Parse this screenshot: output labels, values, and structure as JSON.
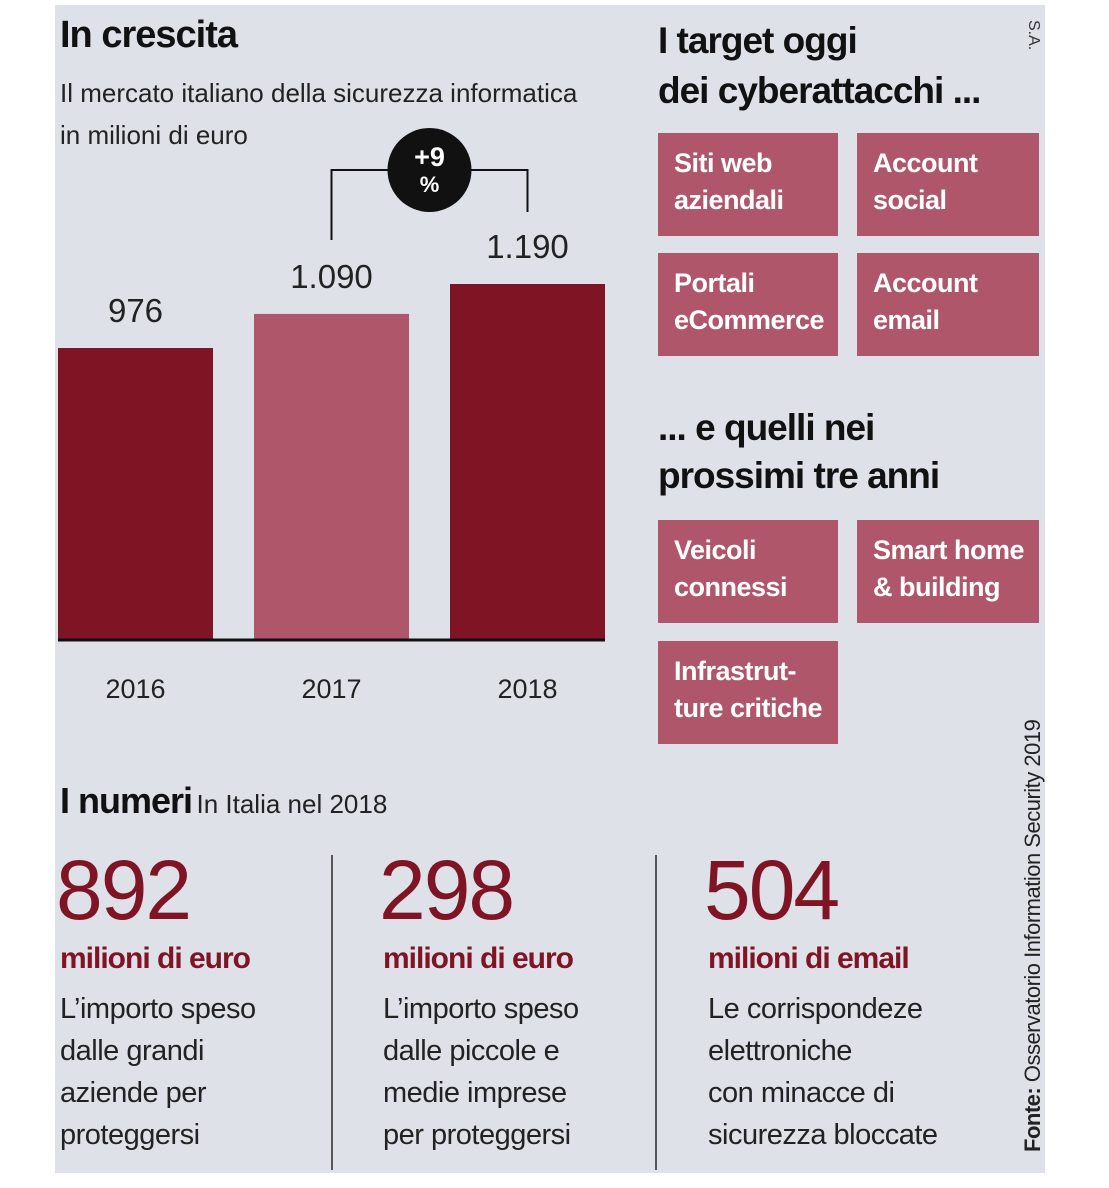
{
  "chart_data": {
    "type": "bar",
    "title": "In crescita",
    "subtitle": [
      "Il mercato italiano della sicurezza informatica",
      "in milioni di euro"
    ],
    "categories": [
      "2016",
      "2017",
      "2018"
    ],
    "values": [
      976,
      1090,
      1190
    ],
    "value_labels": [
      "976",
      "1.090",
      "1.190"
    ],
    "colors": [
      "#7e1424",
      "#b0566a",
      "#7e1424"
    ],
    "annotation": [
      "+9",
      "%"
    ]
  },
  "targets_now": {
    "title": [
      "I target oggi",
      "dei cyberattacchi ..."
    ],
    "items": [
      [
        "Siti web",
        "aziendali"
      ],
      [
        "Account",
        "social"
      ],
      [
        "Portali",
        "eCommerce"
      ],
      [
        "Account",
        "email"
      ]
    ]
  },
  "targets_future": {
    "title": [
      "... e quelli nei",
      "prossimi tre anni"
    ],
    "items": [
      [
        "Veicoli",
        "connessi"
      ],
      [
        "Smart home",
        "& building"
      ],
      [
        "Infrastrut-",
        "ture critiche"
      ]
    ]
  },
  "numbers": {
    "title": "I numeri",
    "subtitle": "In Italia nel 2018",
    "items": [
      {
        "value": 892,
        "unit": "milioni di euro",
        "text": [
          "L’importo speso",
          "dalle grandi",
          "aziende per",
          "proteggersi"
        ]
      },
      {
        "value": 298,
        "unit": "milioni di euro",
        "text": [
          "L’importo speso",
          "dalle piccole e",
          "medie imprese",
          "per proteggersi"
        ]
      },
      {
        "value": 504,
        "unit": "milioni di email",
        "text": [
          "Le corrispondeze",
          "elettroniche",
          "con minacce di",
          "sicurezza bloccate"
        ]
      }
    ]
  },
  "credit": "S.A.",
  "source": {
    "label": "Fonte:",
    "text": "Osservatorio Information Security 2019"
  }
}
